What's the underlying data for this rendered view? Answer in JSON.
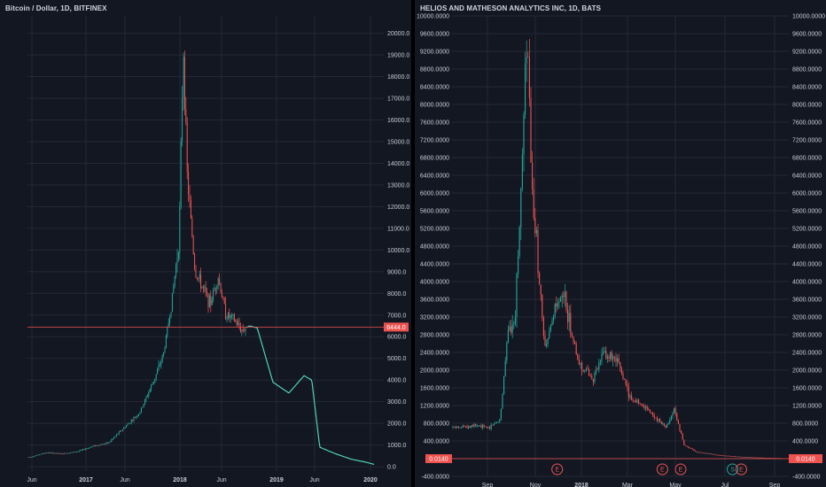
{
  "charts": [
    {
      "title": "Bitcoin / Dollar, 1D, BITFINEX",
      "price_label": "6444.0",
      "y_ticks": [
        "0.0",
        "1000.0",
        "2000.0",
        "3000.0",
        "4000.0",
        "5000.0",
        "6000.0",
        "7000.0",
        "8000.0",
        "9000.0",
        "10000.0",
        "11000.0",
        "12000.0",
        "13000.0",
        "14000.0",
        "15000.0",
        "16000.0",
        "17000.0",
        "18000.0",
        "19000.0",
        "20000.0"
      ],
      "x_ticks": [
        {
          "label": "Jun",
          "bold": false
        },
        {
          "label": "2017",
          "bold": true
        },
        {
          "label": "Jun",
          "bold": false
        },
        {
          "label": "2018",
          "bold": true
        },
        {
          "label": "Jun",
          "bold": false
        },
        {
          "label": "2019",
          "bold": true
        },
        {
          "label": "Jun",
          "bold": false
        },
        {
          "label": "2020",
          "bold": true
        }
      ]
    },
    {
      "title": "HELIOS AND MATHESON ANALYTICS INC, 1D, BATS",
      "price_label": "0.0140",
      "y_ticks": [
        "-400.0000",
        "0.0000",
        "400.0000",
        "800.0000",
        "1200.0000",
        "1600.0000",
        "2000.0000",
        "2400.0000",
        "2800.0000",
        "3200.0000",
        "3600.0000",
        "4000.0000",
        "4400.0000",
        "4800.0000",
        "5200.0000",
        "5600.0000",
        "6000.0000",
        "6400.0000",
        "6800.0000",
        "7200.0000",
        "7600.0000",
        "8000.0000",
        "8400.0000",
        "8800.0000",
        "9200.0000",
        "9600.0000",
        "10000.0000"
      ],
      "x_ticks": [
        {
          "label": "Sep",
          "bold": false
        },
        {
          "label": "Nov",
          "bold": false
        },
        {
          "label": "2018",
          "bold": true
        },
        {
          "label": "Mar",
          "bold": false
        },
        {
          "label": "May",
          "bold": false
        },
        {
          "label": "Jul",
          "bold": false
        },
        {
          "label": "Sep",
          "bold": false
        }
      ],
      "markers": [
        "E",
        "E",
        "E",
        "S",
        "E"
      ]
    }
  ],
  "colors": {
    "background": "#131722",
    "grid": "#242836",
    "up": "#26a69a",
    "down": "#ef5350",
    "projection": "#4fd1b8",
    "text": "#c9ccd4"
  },
  "chart_data": [
    {
      "type": "line",
      "title": "Bitcoin / Dollar, 1D, BITFINEX",
      "x": [
        "2016-05",
        "2016-07",
        "2016-09",
        "2016-11",
        "2017-01",
        "2017-03",
        "2017-05",
        "2017-07",
        "2017-09",
        "2017-10",
        "2017-11",
        "2017-12-01",
        "2017-12-17",
        "2018-01",
        "2018-02",
        "2018-03",
        "2018-04",
        "2018-05",
        "2018-06",
        "2018-07",
        "2018-08",
        "2018-09",
        "2018-10",
        "2018-12",
        "2019-02",
        "2019-04",
        "2019-05",
        "2019-06",
        "2019-08",
        "2019-10",
        "2019-12",
        "2020-01"
      ],
      "series": [
        {
          "values": [
            450,
            650,
            600,
            700,
            950,
            1100,
            1800,
            2500,
            4200,
            5200,
            7500,
            10500,
            19500,
            13500,
            9000,
            8300,
            7500,
            8800,
            7000,
            6800,
            6300,
            6500,
            6400,
            3900,
            3400,
            4200,
            4000,
            900,
            600,
            350,
            200,
            100
          ]
        }
      ],
      "current_price": 6444.0,
      "ylim": [
        -200,
        20800
      ],
      "grid": true
    },
    {
      "type": "line",
      "title": "HELIOS AND MATHESON ANALYTICS INC, 1D, BATS",
      "x": [
        "2017-07-01",
        "2017-08-01",
        "2017-08-20",
        "2017-09-05",
        "2017-09-15",
        "2017-09-25",
        "2017-10-03",
        "2017-10-12",
        "2017-10-18",
        "2017-10-25",
        "2017-11-05",
        "2017-11-20",
        "2017-12-01",
        "2017-12-20",
        "2018-01-10",
        "2018-01-25",
        "2018-02-15",
        "2018-03-01",
        "2018-03-20",
        "2018-04-01",
        "2018-04-20",
        "2018-05-01",
        "2018-05-15",
        "2018-06-01",
        "2018-07-01",
        "2018-08-01",
        "2018-09-01",
        "2018-09-25"
      ],
      "series": [
        {
          "values": [
            700,
            750,
            700,
            900,
            2800,
            3200,
            5800,
            9700,
            6000,
            4800,
            2400,
            3400,
            3700,
            2200,
            1800,
            2400,
            2100,
            1400,
            1200,
            1000,
            700,
            1100,
            300,
            150,
            80,
            40,
            20,
            10
          ]
        }
      ],
      "current_price": 0.014,
      "events": [
        {
          "x": "2017-11-22",
          "label": "E"
        },
        {
          "x": "2018-04-15",
          "label": "E"
        },
        {
          "x": "2018-05-10",
          "label": "E"
        },
        {
          "x": "2018-07-20",
          "label": "S"
        },
        {
          "x": "2018-08-01",
          "label": "E"
        }
      ],
      "ylim": [
        -400,
        10000
      ],
      "grid": true
    }
  ]
}
